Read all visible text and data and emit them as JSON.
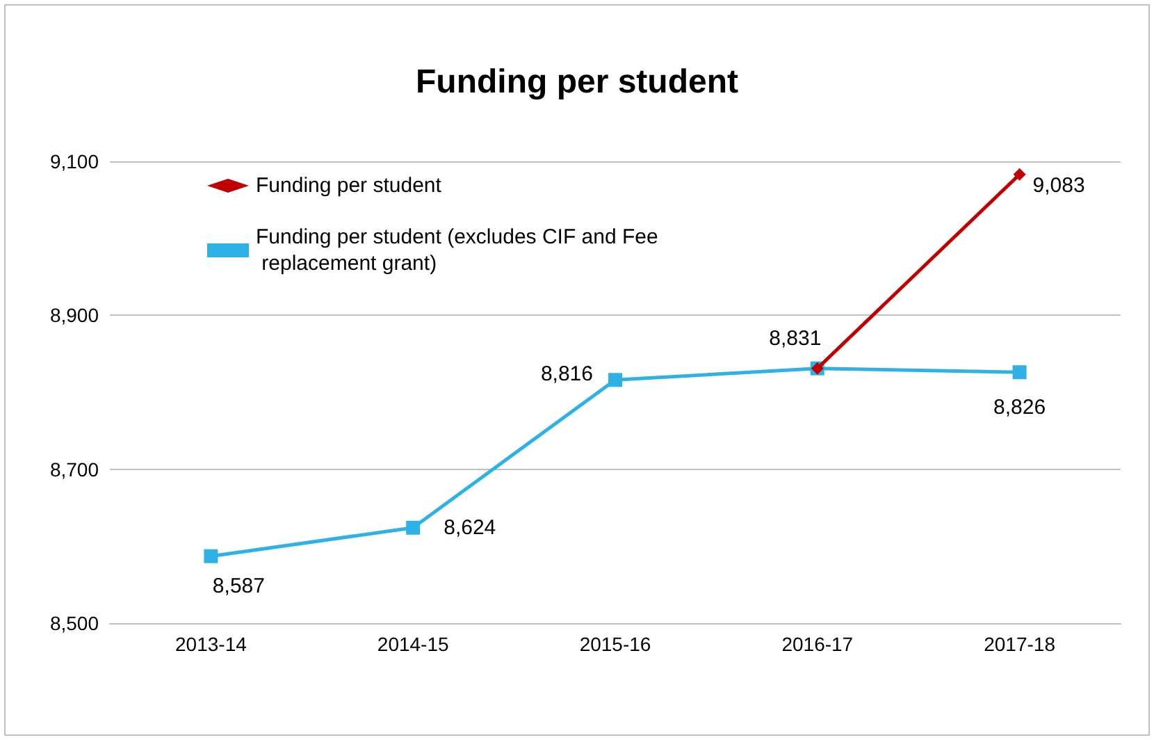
{
  "chart_data": {
    "type": "line",
    "title": "Funding per student",
    "categories": [
      "2013-14",
      "2014-15",
      "2015-16",
      "2016-17",
      "2017-18"
    ],
    "series": [
      {
        "name": "Funding per student",
        "color": "#c00000",
        "marker": "diamond",
        "values": [
          null,
          null,
          null,
          8831,
          9083
        ],
        "value_labels": [
          null,
          null,
          null,
          null,
          "9,083"
        ]
      },
      {
        "name": "Funding per student (excludes CIF and Fee replacement grant)",
        "color": "#2eb2e6",
        "marker": "square",
        "values": [
          8587,
          8624,
          8816,
          8831,
          8826
        ],
        "value_labels": [
          "8,587",
          "8,624",
          "8,816",
          "8,831",
          "8,826"
        ]
      }
    ],
    "ylim": [
      8500,
      9100
    ],
    "yticks": [
      {
        "value": 8500,
        "label": "8,500"
      },
      {
        "value": 8700,
        "label": "8,700"
      },
      {
        "value": 8900,
        "label": "8,900"
      },
      {
        "value": 9100,
        "label": "9,100"
      }
    ],
    "grid": "y",
    "legend": "top left",
    "line_style": "solid"
  }
}
